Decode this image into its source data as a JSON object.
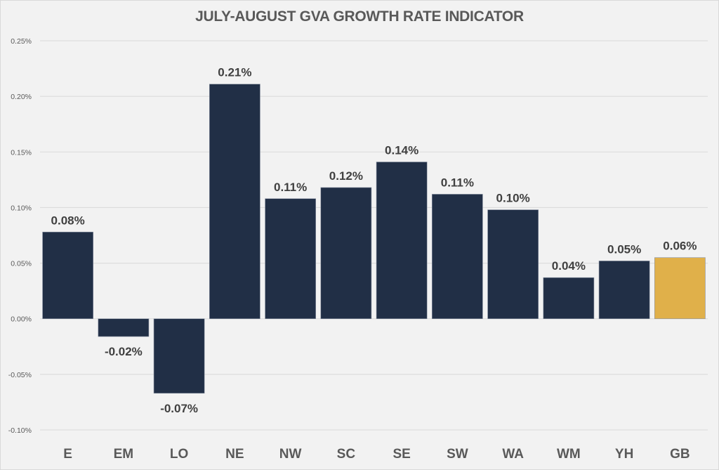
{
  "chart_data": {
    "type": "bar",
    "title": "JULY-AUGUST GVA GROWTH RATE INDICATOR",
    "xlabel": "",
    "ylabel": "",
    "categories": [
      "E",
      "EM",
      "LO",
      "NE",
      "NW",
      "SC",
      "SE",
      "SW",
      "WA",
      "WM",
      "YH",
      "GB"
    ],
    "values": [
      0.078,
      -0.016,
      -0.067,
      0.211,
      0.108,
      0.118,
      0.141,
      0.112,
      0.098,
      0.037,
      0.052,
      0.055
    ],
    "data_labels": [
      "0.08%",
      "-0.02%",
      "-0.07%",
      "0.21%",
      "0.11%",
      "0.12%",
      "0.14%",
      "0.11%",
      "0.10%",
      "0.04%",
      "0.05%",
      "0.06%"
    ],
    "ylim": [
      -0.1,
      0.25
    ],
    "yticks": [
      -0.1,
      -0.05,
      0.0,
      0.05,
      0.1,
      0.15,
      0.2,
      0.25
    ],
    "ytick_labels": [
      "-0.10%",
      "-0.05%",
      "0.00%",
      "0.05%",
      "0.10%",
      "0.15%",
      "0.20%",
      "0.25%"
    ],
    "grid": true,
    "legend": "none",
    "colors": {
      "default_bar": "#212f46",
      "highlight_bar": "#e0b04a",
      "highlight_category": "GB",
      "gridline": "#d9d9d9",
      "background": "#f2f2f2"
    }
  }
}
